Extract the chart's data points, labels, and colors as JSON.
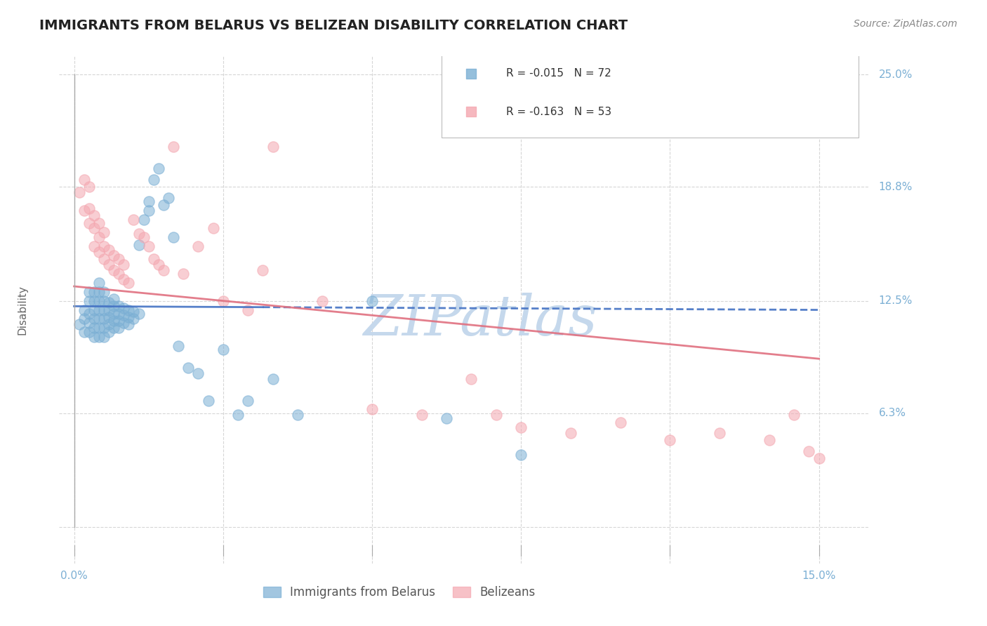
{
  "title": "IMMIGRANTS FROM BELARUS VS BELIZEAN DISABILITY CORRELATION CHART",
  "source": "Source: ZipAtlas.com",
  "ylabel": "Disability",
  "color_blue": "#7BAFD4",
  "color_pink": "#F4A7B0",
  "color_blue_line": "#4472C4",
  "color_pink_line": "#E07080",
  "color_axis_text": "#7BAFD4",
  "color_grid": "#CCCCCC",
  "watermark": "ZIPatlas",
  "watermark_color": "#C5D8EC",
  "legend_r1": "-0.015",
  "legend_n1": "72",
  "legend_r2": "-0.163",
  "legend_n2": "53",
  "xlim": [
    0.0,
    0.15
  ],
  "ylim": [
    0.0,
    0.25
  ],
  "x_ticks": [
    0.0,
    0.03,
    0.06,
    0.09,
    0.12,
    0.15
  ],
  "y_ticks": [
    0.0,
    0.063,
    0.125,
    0.188,
    0.25
  ],
  "y_tick_labels": [
    "",
    "6.3%",
    "12.5%",
    "18.8%",
    "25.0%"
  ],
  "blue_points_x": [
    0.001,
    0.002,
    0.002,
    0.002,
    0.003,
    0.003,
    0.003,
    0.003,
    0.003,
    0.004,
    0.004,
    0.004,
    0.004,
    0.004,
    0.004,
    0.005,
    0.005,
    0.005,
    0.005,
    0.005,
    0.005,
    0.005,
    0.006,
    0.006,
    0.006,
    0.006,
    0.006,
    0.006,
    0.007,
    0.007,
    0.007,
    0.007,
    0.007,
    0.008,
    0.008,
    0.008,
    0.008,
    0.008,
    0.009,
    0.009,
    0.009,
    0.009,
    0.01,
    0.01,
    0.01,
    0.011,
    0.011,
    0.011,
    0.012,
    0.012,
    0.013,
    0.013,
    0.014,
    0.015,
    0.015,
    0.016,
    0.017,
    0.018,
    0.019,
    0.02,
    0.021,
    0.023,
    0.025,
    0.027,
    0.03,
    0.033,
    0.035,
    0.04,
    0.045,
    0.06,
    0.075,
    0.09
  ],
  "blue_points_y": [
    0.112,
    0.108,
    0.115,
    0.12,
    0.108,
    0.113,
    0.118,
    0.125,
    0.13,
    0.105,
    0.11,
    0.115,
    0.12,
    0.125,
    0.13,
    0.105,
    0.11,
    0.115,
    0.12,
    0.125,
    0.13,
    0.135,
    0.105,
    0.11,
    0.115,
    0.12,
    0.125,
    0.13,
    0.108,
    0.112,
    0.116,
    0.12,
    0.124,
    0.11,
    0.114,
    0.118,
    0.122,
    0.126,
    0.11,
    0.114,
    0.118,
    0.122,
    0.113,
    0.117,
    0.121,
    0.112,
    0.116,
    0.12,
    0.115,
    0.119,
    0.118,
    0.156,
    0.17,
    0.175,
    0.18,
    0.192,
    0.198,
    0.178,
    0.182,
    0.16,
    0.1,
    0.088,
    0.085,
    0.07,
    0.098,
    0.062,
    0.07,
    0.082,
    0.062,
    0.125,
    0.06,
    0.04
  ],
  "pink_points_x": [
    0.001,
    0.002,
    0.002,
    0.003,
    0.003,
    0.003,
    0.004,
    0.004,
    0.004,
    0.005,
    0.005,
    0.005,
    0.006,
    0.006,
    0.006,
    0.007,
    0.007,
    0.008,
    0.008,
    0.009,
    0.009,
    0.01,
    0.01,
    0.011,
    0.012,
    0.013,
    0.014,
    0.015,
    0.016,
    0.017,
    0.018,
    0.02,
    0.022,
    0.025,
    0.028,
    0.03,
    0.035,
    0.038,
    0.04,
    0.05,
    0.06,
    0.07,
    0.08,
    0.085,
    0.09,
    0.1,
    0.11,
    0.12,
    0.13,
    0.14,
    0.145,
    0.148,
    0.15
  ],
  "pink_points_y": [
    0.185,
    0.192,
    0.175,
    0.168,
    0.176,
    0.188,
    0.155,
    0.165,
    0.172,
    0.152,
    0.16,
    0.168,
    0.148,
    0.155,
    0.163,
    0.145,
    0.153,
    0.142,
    0.15,
    0.14,
    0.148,
    0.137,
    0.145,
    0.135,
    0.17,
    0.162,
    0.16,
    0.155,
    0.148,
    0.145,
    0.142,
    0.21,
    0.14,
    0.155,
    0.165,
    0.125,
    0.12,
    0.142,
    0.21,
    0.125,
    0.065,
    0.062,
    0.082,
    0.062,
    0.055,
    0.052,
    0.058,
    0.048,
    0.052,
    0.048,
    0.062,
    0.042,
    0.038
  ],
  "blue_line_x0": 0.0,
  "blue_line_x1": 0.15,
  "blue_line_y0": 0.122,
  "blue_line_y1": 0.12,
  "blue_line_dashed_x0": 0.038,
  "pink_line_x0": 0.0,
  "pink_line_x1": 0.15,
  "pink_line_y0": 0.133,
  "pink_line_y1": 0.093,
  "title_fontsize": 14,
  "source_fontsize": 10,
  "tick_fontsize": 11,
  "ylabel_fontsize": 11,
  "legend_fontsize": 12,
  "watermark_fontsize": 58
}
